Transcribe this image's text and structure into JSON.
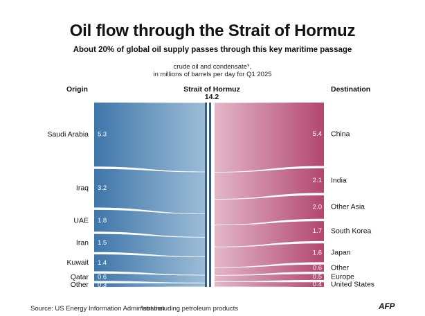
{
  "title": "Oil flow through the Strait of Hormuz",
  "subtitle": "About 20% of global oil supply passes through this key maritime passage",
  "note_line1": "crude oil and condensate*,",
  "note_line2": "in millions of barrels per day for Q1 2025",
  "origin_header": "Origin",
  "strait_header": "Strait of Hormuz",
  "strait_total": "14.2",
  "destination_header": "Destination",
  "source": "Source: US Energy Information Administration",
  "footnote": "*not including petroleum products",
  "logo": "AFP",
  "colors": {
    "origin": "#4a81b3",
    "destination": "#b74f74",
    "divider": "#2f5f8a"
  },
  "chart_data": {
    "type": "sankey",
    "unit": "millions of barrels per day",
    "total": 14.2,
    "origins": [
      {
        "name": "Saudi Arabia",
        "value": 5.3,
        "label": "5.3"
      },
      {
        "name": "Iraq",
        "value": 3.2,
        "label": "3.2"
      },
      {
        "name": "UAE",
        "value": 1.8,
        "label": "1.8"
      },
      {
        "name": "Iran",
        "value": 1.5,
        "label": "1.5"
      },
      {
        "name": "Kuwait",
        "value": 1.4,
        "label": "1.4"
      },
      {
        "name": "Qatar",
        "value": 0.6,
        "label": "0.6"
      },
      {
        "name": "Other",
        "value": 0.3,
        "label": "0.3"
      }
    ],
    "destinations": [
      {
        "name": "China",
        "value": 5.4,
        "label": "5.4"
      },
      {
        "name": "India",
        "value": 2.1,
        "label": "2.1"
      },
      {
        "name": "Other Asia",
        "value": 2.0,
        "label": "2.0"
      },
      {
        "name": "South Korea",
        "value": 1.7,
        "label": "1.7"
      },
      {
        "name": "Japan",
        "value": 1.6,
        "label": "1.6"
      },
      {
        "name": "Other",
        "value": 0.6,
        "label": "0.6"
      },
      {
        "name": "Europe",
        "value": 0.5,
        "label": "0.5"
      },
      {
        "name": "United States",
        "value": 0.4,
        "label": "0.4"
      }
    ]
  }
}
